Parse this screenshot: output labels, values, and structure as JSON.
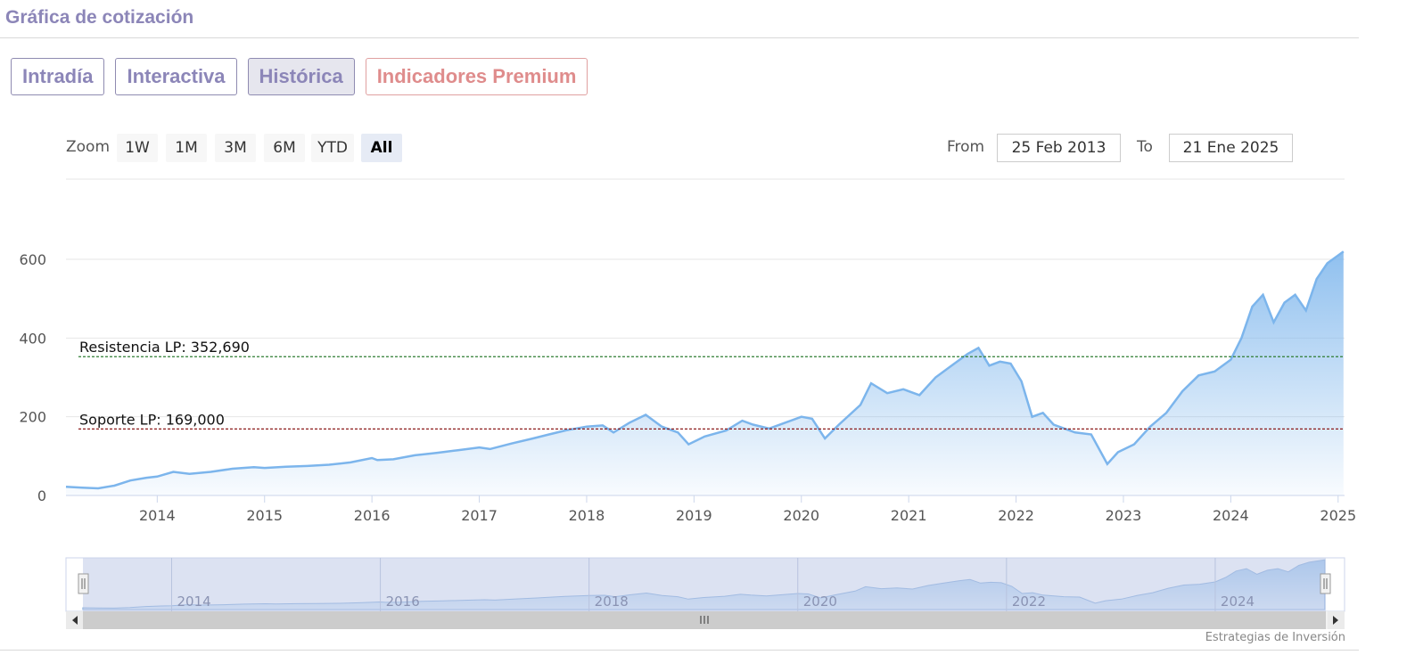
{
  "header": {
    "title": "Gráfica de cotización"
  },
  "tabs": [
    {
      "label": "Intradía",
      "active": false
    },
    {
      "label": "Interactiva",
      "active": false
    },
    {
      "label": "Histórica",
      "active": true
    },
    {
      "label": "Indicadores Premium",
      "active": false
    }
  ],
  "zoom": {
    "label": "Zoom",
    "buttons": [
      "1W",
      "1M",
      "3M",
      "6M",
      "YTD",
      "All"
    ],
    "selected": "All"
  },
  "range": {
    "from_label": "From",
    "from_value": "25 Feb 2013",
    "to_label": "To",
    "to_value": "21 Ene 2025"
  },
  "credit": "Estrategias de Inversión",
  "colors": {
    "line": "#7cb5ec",
    "resistance": "#2e7d32",
    "support": "#8b1a1a",
    "accent": "#8c86b8",
    "premium": "#df8c8c"
  },
  "chart_data": {
    "type": "area",
    "title": "",
    "xlabel": "",
    "ylabel": "",
    "ylim": [
      0,
      600
    ],
    "y_ticks": [
      0,
      200,
      400,
      600
    ],
    "x_ticks": [
      "2014",
      "2015",
      "2016",
      "2017",
      "2018",
      "2019",
      "2020",
      "2021",
      "2022",
      "2023",
      "2024",
      "2025"
    ],
    "navigator_ticks": [
      "2014",
      "2016",
      "2018",
      "2020",
      "2022",
      "2024"
    ],
    "grid": true,
    "series": [
      {
        "values": [
          [
            2013.15,
            22
          ],
          [
            2013.3,
            20
          ],
          [
            2013.45,
            18
          ],
          [
            2013.6,
            25
          ],
          [
            2013.75,
            38
          ],
          [
            2013.9,
            45
          ],
          [
            2014.0,
            48
          ],
          [
            2014.15,
            60
          ],
          [
            2014.3,
            55
          ],
          [
            2014.5,
            60
          ],
          [
            2014.7,
            68
          ],
          [
            2014.9,
            72
          ],
          [
            2015.0,
            70
          ],
          [
            2015.2,
            73
          ],
          [
            2015.4,
            75
          ],
          [
            2015.6,
            78
          ],
          [
            2015.8,
            84
          ],
          [
            2016.0,
            95
          ],
          [
            2016.05,
            90
          ],
          [
            2016.2,
            92
          ],
          [
            2016.4,
            102
          ],
          [
            2016.6,
            108
          ],
          [
            2016.8,
            115
          ],
          [
            2017.0,
            122
          ],
          [
            2017.1,
            118
          ],
          [
            2017.3,
            132
          ],
          [
            2017.5,
            145
          ],
          [
            2017.65,
            155
          ],
          [
            2017.8,
            165
          ],
          [
            2018.0,
            175
          ],
          [
            2018.15,
            178
          ],
          [
            2018.25,
            160
          ],
          [
            2018.4,
            185
          ],
          [
            2018.55,
            205
          ],
          [
            2018.7,
            175
          ],
          [
            2018.85,
            160
          ],
          [
            2018.95,
            130
          ],
          [
            2019.1,
            150
          ],
          [
            2019.3,
            165
          ],
          [
            2019.45,
            190
          ],
          [
            2019.55,
            180
          ],
          [
            2019.7,
            170
          ],
          [
            2019.85,
            185
          ],
          [
            2020.0,
            200
          ],
          [
            2020.1,
            195
          ],
          [
            2020.22,
            145
          ],
          [
            2020.35,
            180
          ],
          [
            2020.55,
            230
          ],
          [
            2020.65,
            285
          ],
          [
            2020.8,
            260
          ],
          [
            2020.95,
            270
          ],
          [
            2021.1,
            255
          ],
          [
            2021.25,
            300
          ],
          [
            2021.4,
            330
          ],
          [
            2021.55,
            360
          ],
          [
            2021.65,
            375
          ],
          [
            2021.75,
            330
          ],
          [
            2021.85,
            340
          ],
          [
            2021.95,
            335
          ],
          [
            2022.05,
            290
          ],
          [
            2022.15,
            200
          ],
          [
            2022.25,
            210
          ],
          [
            2022.35,
            180
          ],
          [
            2022.55,
            160
          ],
          [
            2022.7,
            155
          ],
          [
            2022.85,
            80
          ],
          [
            2022.95,
            110
          ],
          [
            2023.1,
            130
          ],
          [
            2023.25,
            175
          ],
          [
            2023.4,
            210
          ],
          [
            2023.55,
            265
          ],
          [
            2023.7,
            305
          ],
          [
            2023.85,
            315
          ],
          [
            2024.0,
            345
          ],
          [
            2024.1,
            400
          ],
          [
            2024.2,
            480
          ],
          [
            2024.3,
            510
          ],
          [
            2024.4,
            440
          ],
          [
            2024.5,
            490
          ],
          [
            2024.6,
            510
          ],
          [
            2024.7,
            470
          ],
          [
            2024.8,
            550
          ],
          [
            2024.9,
            590
          ],
          [
            2025.0,
            610
          ],
          [
            2025.05,
            620
          ]
        ]
      }
    ],
    "annotations": [
      {
        "label": "Resistencia LP: 352,690",
        "value": 352.69,
        "type": "resistance"
      },
      {
        "label": "Soporte LP: 169,000",
        "value": 169.0,
        "type": "support"
      }
    ]
  }
}
